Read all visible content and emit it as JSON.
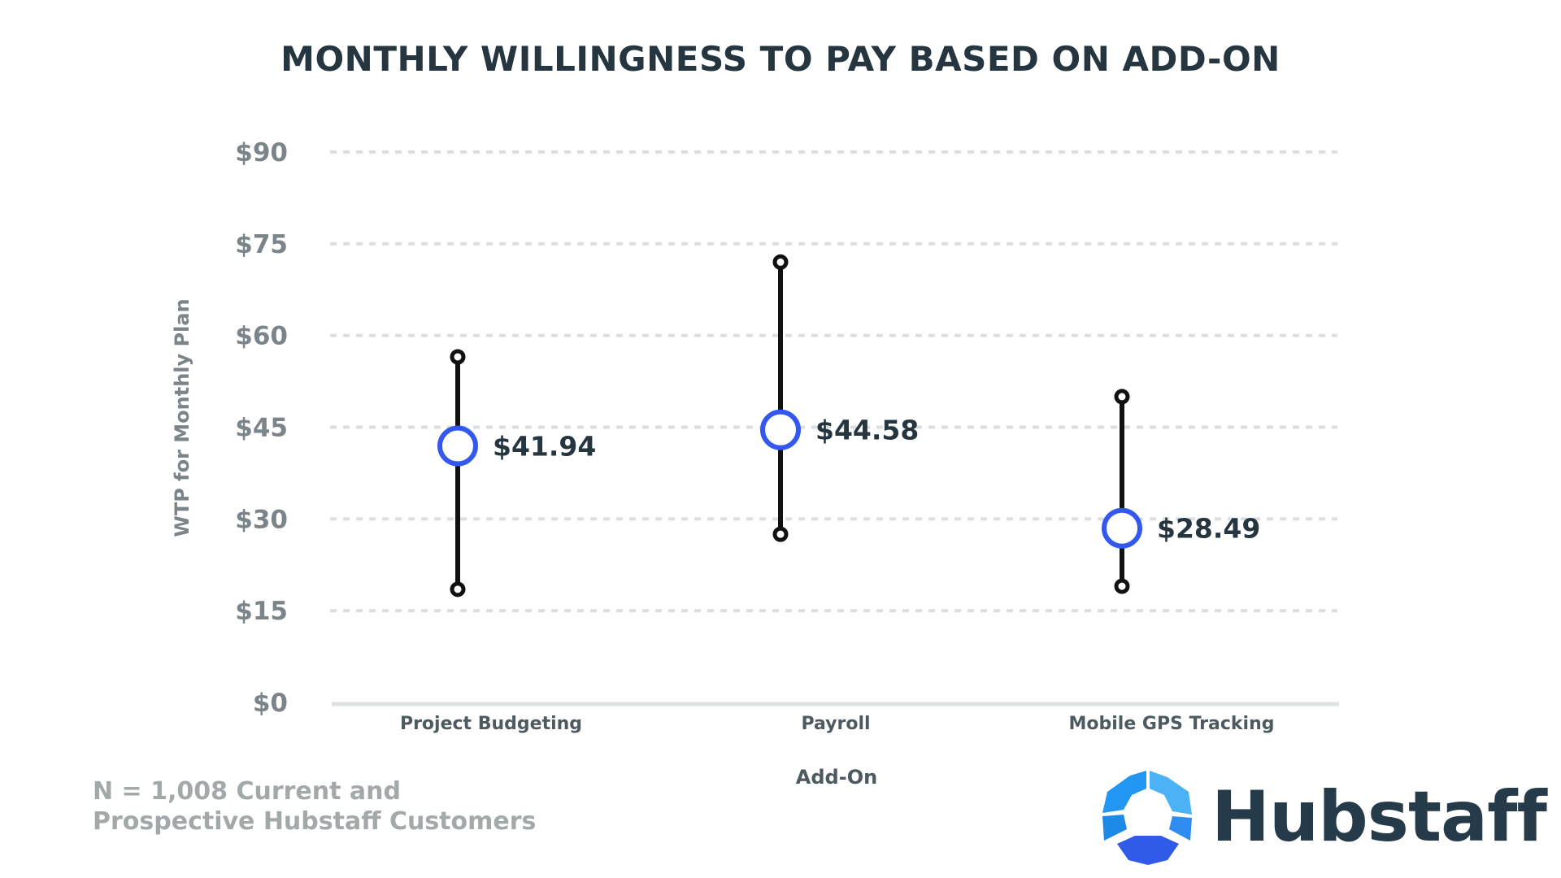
{
  "chart_data": {
    "type": "range-dot",
    "title": "MONTHLY WILLINGNESS TO PAY BASED ON ADD-ON",
    "xlabel": "Add-On",
    "ylabel": "WTP for Monthly Plan",
    "ylim": [
      0,
      90
    ],
    "yticks": [
      0,
      15,
      30,
      45,
      60,
      75,
      90
    ],
    "ytick_labels": [
      "$0",
      "$15",
      "$30",
      "$45",
      "$60",
      "$75",
      "$90"
    ],
    "grid": true,
    "categories": [
      "Project Budgeting",
      "Payroll",
      "Mobile GPS Tracking"
    ],
    "series": [
      {
        "mean": 41.94,
        "mean_label": "$41.94",
        "low": 18.5,
        "high": 56.5
      },
      {
        "mean": 44.58,
        "mean_label": "$44.58",
        "low": 27.5,
        "high": 72
      },
      {
        "mean": 28.49,
        "mean_label": "$28.49",
        "low": 19,
        "high": 50
      }
    ],
    "colors": {
      "marker": "#3358f0",
      "whisker": "#111111",
      "grid": "#dcdfe0",
      "axis": "#dfe3e3",
      "tick_text": "#7b8589",
      "label_text": "#263640"
    }
  },
  "footnote": {
    "line1": "N = 1,008 Current and",
    "line2": "Prospective Hubstaff Customers"
  },
  "brand": {
    "name": "Hubstaff",
    "colors": {
      "light": "#4ab2f5",
      "mid": "#2196f3",
      "dark": "#2f5be8",
      "text": "#263b4a"
    }
  }
}
